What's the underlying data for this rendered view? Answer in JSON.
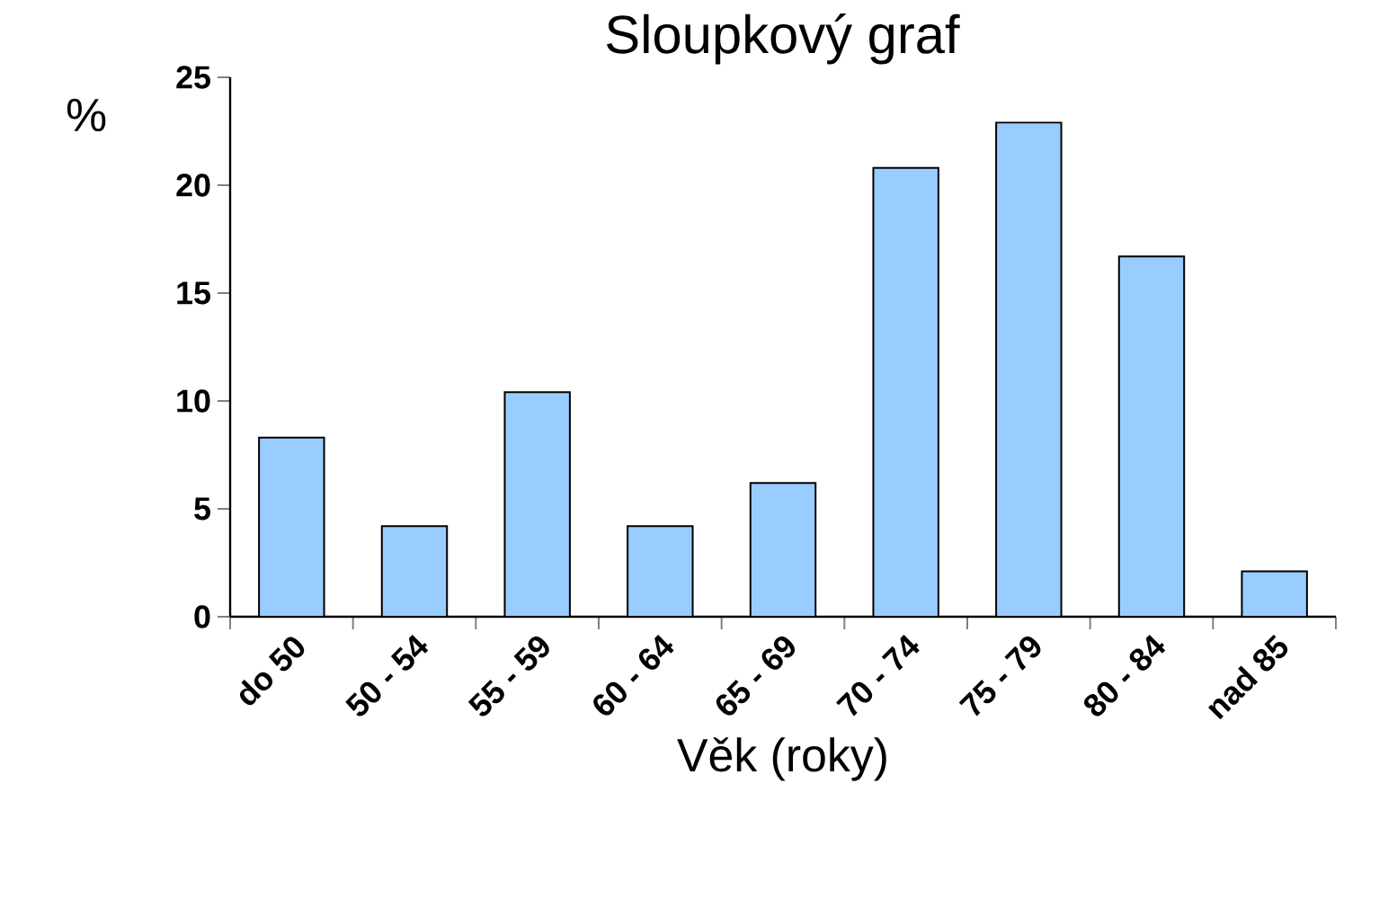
{
  "chart_data": {
    "type": "bar",
    "title": "Sloupkový graf",
    "xlabel": "Věk (roky)",
    "ylabel": "%",
    "categories": [
      "do 50",
      "50 - 54",
      "55 - 59",
      "60 - 64",
      "65 - 69",
      "70 - 74",
      "75 - 79",
      "80 - 84",
      "nad 85"
    ],
    "values": [
      8.3,
      4.2,
      10.4,
      4.2,
      6.2,
      20.8,
      22.9,
      16.7,
      2.1
    ],
    "color": "#99ccff",
    "ylim": [
      0,
      25
    ],
    "yticks": [
      0,
      5,
      10,
      15,
      20,
      25
    ],
    "grid": false
  }
}
